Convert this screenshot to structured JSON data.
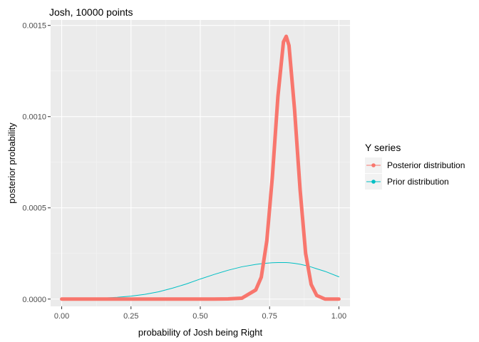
{
  "chart_data": {
    "type": "line",
    "title": "Josh, 10000 points",
    "xlabel": "probability of Josh being Right",
    "ylabel": "posterior probability",
    "xlim": [
      -0.04,
      1.04
    ],
    "ylim": [
      -4e-05,
      0.00153
    ],
    "x_ticks": [
      0.0,
      0.25,
      0.5,
      0.75,
      1.0
    ],
    "x_tick_labels": [
      "0.00",
      "0.25",
      "0.50",
      "0.75",
      "1.00"
    ],
    "y_ticks": [
      0.0,
      0.0005,
      0.001,
      0.0015
    ],
    "y_tick_labels": [
      "0.0000",
      "0.0005",
      "0.0010",
      "0.0015"
    ],
    "grid": true,
    "legend_title": "Y series",
    "legend_position": "right",
    "x": [
      0.0,
      0.05,
      0.1,
      0.15,
      0.2,
      0.25,
      0.3,
      0.35,
      0.4,
      0.45,
      0.5,
      0.55,
      0.6,
      0.65,
      0.7,
      0.72,
      0.74,
      0.76,
      0.78,
      0.8,
      0.81,
      0.82,
      0.84,
      0.86,
      0.88,
      0.9,
      0.92,
      0.95,
      1.0
    ],
    "series": [
      {
        "name": "Posterior distribution",
        "color": "#F8766D",
        "values": [
          0.0,
          0.0,
          0.0,
          0.0,
          0.0,
          0.0,
          0.0,
          0.0,
          0.0,
          0.0,
          0.0,
          0.0,
          1e-06,
          5e-06,
          5e-05,
          0.00012,
          0.00032,
          0.00067,
          0.00111,
          0.00141,
          0.00144,
          0.00139,
          0.00104,
          0.0006,
          0.00025,
          8e-05,
          2e-05,
          0.0,
          0.0
        ]
      },
      {
        "name": "Prior distribution",
        "color": "#00BFC4",
        "values": [
          2e-06,
          3e-06,
          4e-06,
          6e-06,
          1e-05,
          1.6e-05,
          2.6e-05,
          4e-05,
          6e-05,
          8.3e-05,
          0.00011,
          0.000135,
          0.000158,
          0.000177,
          0.00019,
          0.000194,
          0.000197,
          0.000199,
          0.0002,
          0.0002,
          0.0002,
          0.000199,
          0.000196,
          0.000191,
          0.000184,
          0.000176,
          0.000166,
          0.000152,
          0.000122
        ]
      }
    ]
  }
}
